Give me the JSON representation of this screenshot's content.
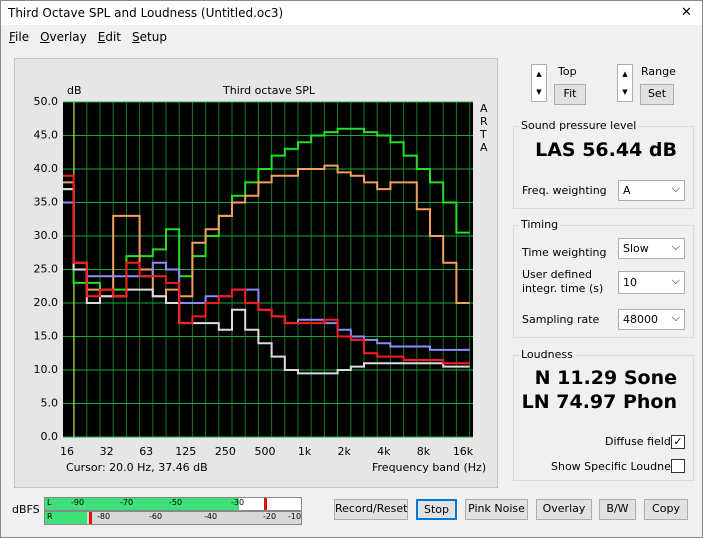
{
  "window": {
    "title": "Third Octave SPL and Loudness (Untitled.oc3)",
    "close": "✕"
  },
  "menu": [
    "File",
    "Overlay",
    "Edit",
    "Setup"
  ],
  "chart_data": {
    "type": "step",
    "title": "Third octave SPL",
    "y_label": "dB",
    "x_label": "Frequency band (Hz)",
    "brand": "ARTA",
    "cursor": "Cursor:  20.0 Hz, 37.46 dB",
    "categories": [
      "16",
      null,
      null,
      "32",
      null,
      null,
      "63",
      null,
      null,
      "125",
      null,
      null,
      "250",
      null,
      null,
      "500",
      null,
      null,
      "1k",
      null,
      null,
      "2k",
      null,
      null,
      "4k",
      null,
      null,
      "8k",
      null,
      null,
      "16k"
    ],
    "series": [
      {
        "color": "#22e022",
        "values": [
          37,
          23,
          23,
          22,
          22,
          27,
          27,
          28,
          31,
          24,
          27,
          30,
          33,
          36,
          38,
          40,
          42,
          43,
          44,
          45,
          45.5,
          46,
          46,
          45.5,
          45,
          44,
          42,
          40,
          38,
          35,
          30.5
        ]
      },
      {
        "color": "#f4a060",
        "values": [
          38,
          26,
          22,
          21,
          33,
          33,
          25,
          21,
          22,
          21,
          29,
          31,
          33,
          35,
          36,
          38,
          39,
          39,
          40,
          40,
          40.5,
          39.5,
          39,
          38,
          37,
          38,
          38,
          34,
          30,
          26,
          20
        ]
      },
      {
        "color": "#8c8cff",
        "values": [
          35,
          25,
          24,
          24,
          24,
          24,
          24,
          26,
          25,
          20,
          20,
          21,
          21,
          22,
          22,
          19,
          18,
          17,
          17.5,
          17.5,
          17,
          16,
          15,
          14.5,
          14,
          13.5,
          13.5,
          13.5,
          13,
          13,
          13
        ]
      },
      {
        "color": "#dcdcdc",
        "values": [
          37,
          25,
          20,
          21,
          21,
          22,
          22,
          21,
          20,
          17,
          17,
          17,
          16,
          19,
          16,
          14,
          12,
          10,
          9.5,
          9.5,
          9.5,
          10,
          10.5,
          11,
          11,
          11,
          11,
          11,
          11,
          10.5,
          10.5
        ]
      },
      {
        "color": "#ff1a1a",
        "values": [
          39,
          26,
          21,
          22,
          21,
          26,
          24,
          24,
          23,
          17,
          18,
          20,
          21,
          22,
          20,
          19,
          18,
          17,
          17,
          17,
          17.5,
          15,
          14.5,
          12.5,
          12,
          12,
          11.5,
          11.5,
          11.5,
          11,
          11
        ]
      }
    ],
    "ylim": [
      0,
      50
    ],
    "yticks": [
      {
        "value": 0,
        "label": "0.0"
      },
      {
        "value": 5,
        "label": "5.0"
      },
      {
        "value": 10,
        "label": "10.0"
      },
      {
        "value": 15,
        "label": "15.0"
      },
      {
        "value": 20,
        "label": "20.0"
      },
      {
        "value": 25,
        "label": "25.0"
      },
      {
        "value": 30,
        "label": "30.0"
      },
      {
        "value": 35,
        "label": "35.0"
      },
      {
        "value": 40,
        "label": "40.0"
      },
      {
        "value": 45,
        "label": "45.0"
      },
      {
        "value": 50,
        "label": "50.0"
      }
    ],
    "grid": true
  },
  "controls": {
    "top": "Top",
    "fit": "Fit",
    "range": "Range",
    "set": "Set",
    "spl": {
      "title": "Sound pressure level",
      "reading": "LAS 56.44 dB",
      "weighting_label": "Freq. weighting",
      "weighting": "A"
    },
    "timing": {
      "title": "Timing",
      "time_weighting_label": "Time weighting",
      "time_weighting": "Slow",
      "integr_label": "User defined integr. time (s)",
      "integr": "10",
      "rate_label": "Sampling rate",
      "rate": "48000"
    },
    "loudness": {
      "title": "Loudness",
      "n": "N 11.29 Sone",
      "ln": "LN 74.97 Phon",
      "diffuse": "Diffuse field",
      "specific": "Show Specific Loudness"
    }
  },
  "meter": {
    "label": "dBFS",
    "l": "L",
    "r": "R",
    "l_ticks": [
      "-90",
      "-70",
      "-50",
      "-30"
    ],
    "r_ticks": [
      "-80",
      "-60",
      "-40",
      "-20",
      "-10"
    ]
  },
  "buttons": [
    "Record/Reset",
    "Stop",
    "Pink Noise",
    "Overlay",
    "B/W",
    "Copy"
  ]
}
